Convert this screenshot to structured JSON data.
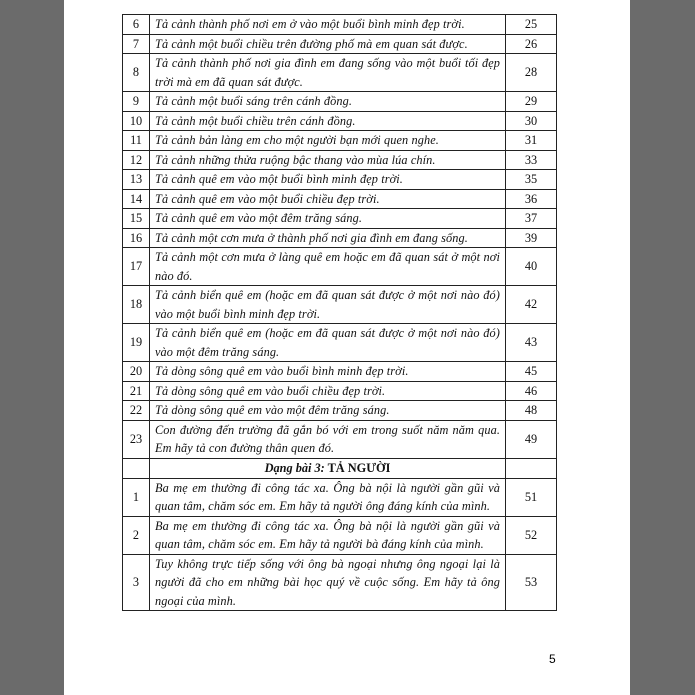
{
  "sections": [
    {
      "rows": [
        {
          "number": "6",
          "text": "Tả cảnh thành phố nơi em ở vào một buổi bình minh đẹp trời.",
          "page": "25"
        },
        {
          "number": "7",
          "text": "Tả cảnh một buổi chiều trên đường phố mà em quan sát được.",
          "page": "26"
        },
        {
          "number": "8",
          "text": "Tả cảnh thành phố nơi gia đình em đang sống vào một buổi tối đẹp trời mà em đã quan sát được.",
          "page": "28"
        },
        {
          "number": "9",
          "text": "Tả cảnh một buổi sáng trên cánh đồng.",
          "page": "29"
        },
        {
          "number": "10",
          "text": "Tả cảnh một buổi chiều trên cánh đồng.",
          "page": "30"
        },
        {
          "number": "11",
          "text": "Tả cảnh bản làng em cho một người bạn mới quen nghe.",
          "page": "31"
        },
        {
          "number": "12",
          "text": "Tả cảnh những thửa ruộng bậc thang vào mùa lúa chín.",
          "page": "33"
        },
        {
          "number": "13",
          "text": "Tả cảnh quê em vào một buổi bình minh đẹp trời.",
          "page": "35"
        },
        {
          "number": "14",
          "text": "Tả cảnh quê em vào một buổi chiều đẹp trời.",
          "page": "36"
        },
        {
          "number": "15",
          "text": "Tả cảnh quê em vào một đêm trăng sáng.",
          "page": "37"
        },
        {
          "number": "16",
          "text": "Tả cảnh một cơn mưa ở thành phố nơi gia đình em đang sống.",
          "page": "39"
        },
        {
          "number": "17",
          "text": "Tả cảnh một cơn mưa ở làng quê em hoặc em đã quan sát ở một nơi nào đó.",
          "page": "40"
        },
        {
          "number": "18",
          "text": "Tả cảnh biển quê em (hoặc em đã quan sát được ở một nơi nào đó) vào một buổi bình minh đẹp trời.",
          "page": "42"
        },
        {
          "number": "19",
          "text": "Tả cảnh biển quê em (hoặc em đã quan sát được ở một nơi nào đó) vào một đêm trăng sáng.",
          "page": "43"
        },
        {
          "number": "20",
          "text": "Tả dòng sông quê em vào buổi bình minh đẹp trời.",
          "page": "45"
        },
        {
          "number": "21",
          "text": "Tả dòng sông quê em vào buổi chiều đẹp trời.",
          "page": "46"
        },
        {
          "number": "22",
          "text": "Tả dòng sông quê em vào một đêm trăng sáng.",
          "page": "48"
        },
        {
          "number": "23",
          "text": "Con đường đến trường đã gắn bó với em trong suốt năm năm qua. Em hãy tả con đường thân quen đó.",
          "page": "49"
        }
      ]
    },
    {
      "heading": {
        "label": "Dạng bài 3:",
        "title": "TẢ NGƯỜI"
      },
      "rows": [
        {
          "number": "1",
          "text": "Ba mẹ em thường đi công tác xa. Ông bà nội là người gần gũi và quan tâm, chăm sóc em. Em hãy tả người ông đáng kính của mình.",
          "page": "51"
        },
        {
          "number": "2",
          "text": "Ba mẹ em thường đi công tác xa. Ông bà nội là người gần gũi và quan tâm, chăm sóc em. Em hãy tả người bà đáng kính của mình.",
          "page": "52"
        },
        {
          "number": "3",
          "text": "Tuy không trực tiếp sống với ông bà ngoại nhưng ông ngoại lại là người đã cho em những bài học quý về cuộc sống. Em hãy tả ông ngoại của mình.",
          "page": "53"
        }
      ]
    }
  ],
  "page_number": "5"
}
